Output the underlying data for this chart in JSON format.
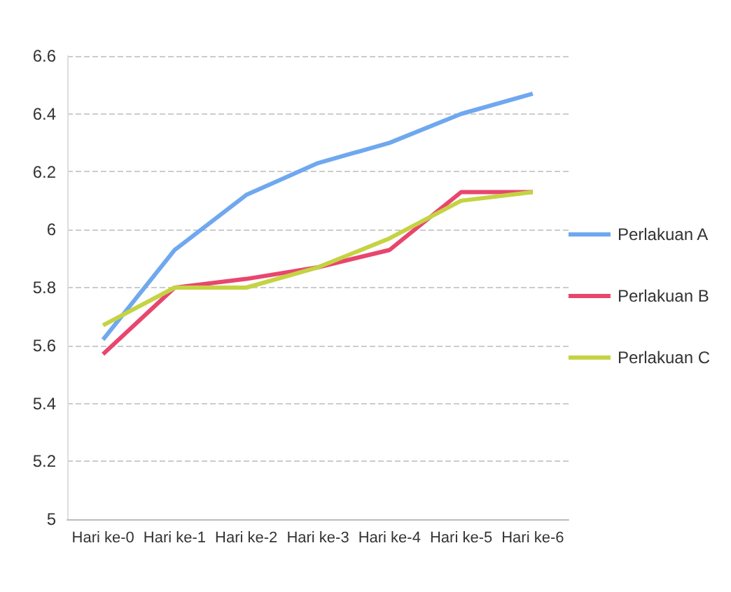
{
  "chart_data": {
    "type": "line",
    "categories": [
      "Hari ke-0",
      "Hari ke-1",
      "Hari ke-2",
      "Hari ke-3",
      "Hari ke-4",
      "Hari ke-5",
      "Hari ke-6"
    ],
    "series": [
      {
        "name": "Perlakuan A",
        "color": "#6fa8ef",
        "values": [
          5.62,
          5.93,
          6.12,
          6.23,
          6.3,
          6.4,
          6.47
        ]
      },
      {
        "name": "Perlakuan B",
        "color": "#e8466e",
        "values": [
          5.57,
          5.8,
          5.83,
          5.87,
          5.93,
          6.13,
          6.13
        ]
      },
      {
        "name": "Perlakuan C",
        "color": "#c5d343",
        "values": [
          5.67,
          5.8,
          5.8,
          5.87,
          5.97,
          6.1,
          6.13
        ]
      }
    ],
    "ylim": [
      5,
      6.6
    ],
    "yticks": [
      5,
      5.2,
      5.4,
      5.6,
      5.8,
      6,
      6.2,
      6.4,
      6.6
    ],
    "grid": "y",
    "legend": "right",
    "marker": "none"
  }
}
